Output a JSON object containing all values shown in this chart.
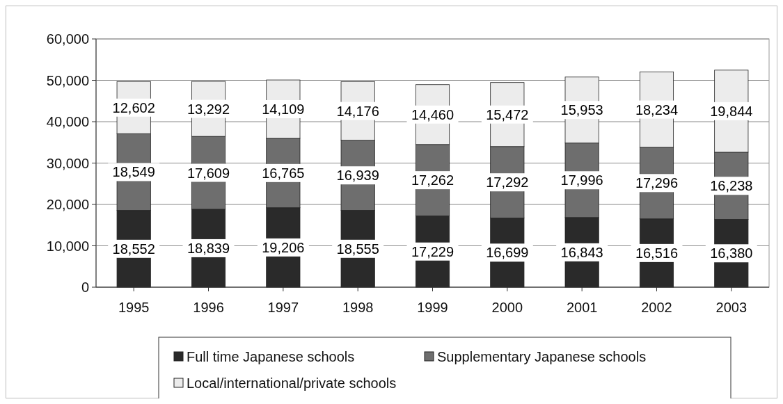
{
  "chart_data": {
    "type": "bar",
    "stacked": true,
    "categories": [
      "1995",
      "1996",
      "1997",
      "1998",
      "1999",
      "2000",
      "2001",
      "2002",
      "2003"
    ],
    "series": [
      {
        "name": "Full time Japanese schools",
        "color": "#2a2a2a",
        "values": [
          18552,
          18839,
          19206,
          18555,
          17229,
          16699,
          16843,
          16516,
          16380
        ],
        "value_labels": [
          "18,552",
          "18,839",
          "19,206",
          "18,555",
          "17,229",
          "16,699",
          "16,843",
          "16,516",
          "16,380"
        ]
      },
      {
        "name": "Supplementary Japanese schools",
        "color": "#6e6e6e",
        "values": [
          18549,
          17609,
          16765,
          16939,
          17262,
          17292,
          17996,
          17296,
          16238
        ],
        "value_labels": [
          "18,549",
          "17,609",
          "16,765",
          "16,939",
          "17,262",
          "17,292",
          "17,996",
          "17,296",
          "16,238"
        ]
      },
      {
        "name": "Local/international/private schools",
        "color": "#ececec",
        "values": [
          12602,
          13292,
          14109,
          14176,
          14460,
          15472,
          15953,
          18234,
          19844
        ],
        "value_labels": [
          "12,602",
          "13,292",
          "14,109",
          "14,176",
          "14,460",
          "15,472",
          "15,953",
          "18,234",
          "19,844"
        ]
      }
    ],
    "ylim": [
      0,
      60000
    ],
    "yticks": [
      {
        "value": 0,
        "label": "0"
      },
      {
        "value": 10000,
        "label": "10,000"
      },
      {
        "value": 20000,
        "label": "20,000"
      },
      {
        "value": 30000,
        "label": "30,000"
      },
      {
        "value": 40000,
        "label": "40,000"
      },
      {
        "value": 50000,
        "label": "50,000"
      },
      {
        "value": 60000,
        "label": "60,000"
      }
    ],
    "grid": "y",
    "legend": "bottom"
  }
}
